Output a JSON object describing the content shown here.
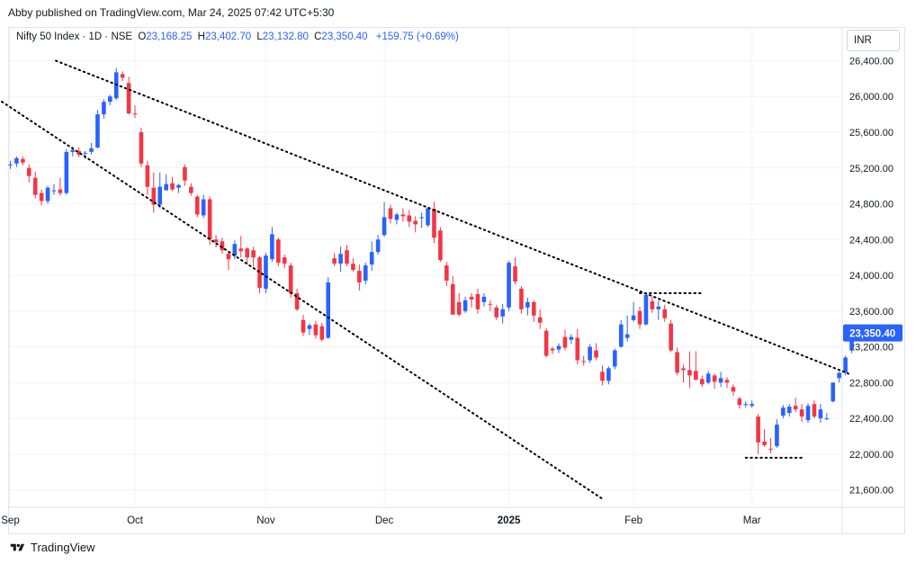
{
  "header": {
    "published_text": "Abby published on TradingView.com, Mar 24, 2025 07:42 UTC+5:30"
  },
  "legend": {
    "symbol": "Nifty 50 Index · 1D · NSE",
    "open_label": "O",
    "open": "23,168.25",
    "high_label": "H",
    "high": "23,402.70",
    "low_label": "L",
    "low": "23,132.80",
    "close_label": "C",
    "close": "23,350.40",
    "change": "+159.75 (+0.69%)"
  },
  "currency": "INR",
  "footer": {
    "brand": "TradingView",
    "logo_icon": "tradingview-logo-icon"
  },
  "colors": {
    "up": "#2962ff",
    "down": "#f23645",
    "last_price_bg": "#2962ff",
    "grid": "#f0f3fa"
  },
  "chart_data": {
    "type": "candlestick",
    "title": "",
    "ylim": [
      21400,
      26600
    ],
    "y_ticks": [
      21600,
      22000,
      22400,
      22800,
      23200,
      23600,
      24000,
      24400,
      24800,
      25200,
      25600,
      26000,
      26400
    ],
    "y_tick_labels": [
      "21,600.00",
      "22,000.00",
      "22,400.00",
      "22,800.00",
      "23,200.00",
      "23,600.00",
      "24,000.00",
      "24,400.00",
      "24,800.00",
      "25,200.00",
      "25,600.00",
      "26,000.00",
      "26,400.00"
    ],
    "x_labels": [
      "Sep",
      "Oct",
      "Nov",
      "Dec",
      "2025",
      "Feb",
      "Mar"
    ],
    "x_label_index": [
      0,
      20,
      41,
      60,
      80,
      100,
      119
    ],
    "last_price_label": "23,350.40",
    "last_price": 23350.4,
    "ohlc": [
      [
        25230,
        25280,
        25190,
        25240
      ],
      [
        25250,
        25330,
        25210,
        25310
      ],
      [
        25300,
        25330,
        25230,
        25260
      ],
      [
        25200,
        25240,
        25040,
        25110
      ],
      [
        25090,
        25160,
        24860,
        24900
      ],
      [
        24920,
        24960,
        24780,
        24830
      ],
      [
        24830,
        25000,
        24800,
        24980
      ],
      [
        24950,
        25020,
        24900,
        24950
      ],
      [
        24960,
        25090,
        24890,
        24920
      ],
      [
        24920,
        25410,
        24900,
        25380
      ],
      [
        25380,
        25440,
        25330,
        25400
      ],
      [
        25390,
        25430,
        25320,
        25350
      ],
      [
        25360,
        25390,
        25300,
        25370
      ],
      [
        25380,
        25480,
        25350,
        25420
      ],
      [
        25430,
        25850,
        25420,
        25800
      ],
      [
        25800,
        25970,
        25750,
        25940
      ],
      [
        25940,
        26020,
        25900,
        26000
      ],
      [
        25980,
        26320,
        25960,
        26270
      ],
      [
        26250,
        26280,
        26170,
        26210
      ],
      [
        26150,
        26220,
        25800,
        25810
      ],
      [
        25810,
        25900,
        25760,
        25800
      ],
      [
        25600,
        25650,
        25210,
        25250
      ],
      [
        25230,
        25280,
        24900,
        24990
      ],
      [
        24980,
        25150,
        24700,
        24790
      ],
      [
        24790,
        25150,
        24750,
        24990
      ],
      [
        24950,
        25130,
        24950,
        25020
      ],
      [
        25030,
        25100,
        24940,
        24960
      ],
      [
        24980,
        25020,
        24920,
        25010
      ],
      [
        25210,
        25240,
        25000,
        25060
      ],
      [
        24990,
        25030,
        24890,
        24920
      ],
      [
        24880,
        24900,
        24650,
        24680
      ],
      [
        24670,
        24900,
        24640,
        24850
      ],
      [
        24850,
        24880,
        24340,
        24400
      ],
      [
        24400,
        24450,
        24310,
        24370
      ],
      [
        24380,
        24420,
        24240,
        24280
      ],
      [
        24240,
        24270,
        24060,
        24180
      ],
      [
        24220,
        24390,
        24180,
        24350
      ],
      [
        24300,
        24440,
        24200,
        24270
      ],
      [
        24300,
        24310,
        24120,
        24200
      ],
      [
        24280,
        24320,
        24100,
        24200
      ],
      [
        24200,
        24220,
        23800,
        23860
      ],
      [
        23850,
        24250,
        23800,
        24220
      ],
      [
        24180,
        24540,
        24150,
        24460
      ],
      [
        24400,
        24420,
        24100,
        24140
      ],
      [
        24200,
        24230,
        24080,
        24130
      ],
      [
        24110,
        24140,
        23750,
        23800
      ],
      [
        23800,
        23850,
        23600,
        23620
      ],
      [
        23500,
        23560,
        23320,
        23360
      ],
      [
        23400,
        23460,
        23330,
        23440
      ],
      [
        23450,
        23490,
        23290,
        23330
      ],
      [
        23430,
        23470,
        23260,
        23280
      ],
      [
        23300,
        23980,
        23290,
        23920
      ],
      [
        24190,
        24250,
        24100,
        24130
      ],
      [
        24130,
        24320,
        24040,
        24240
      ],
      [
        24280,
        24340,
        24100,
        24130
      ],
      [
        24130,
        24190,
        24040,
        24060
      ],
      [
        24050,
        24120,
        23830,
        23920
      ],
      [
        23940,
        24140,
        23900,
        24110
      ],
      [
        24120,
        24380,
        24050,
        24260
      ],
      [
        24260,
        24450,
        24230,
        24400
      ],
      [
        24450,
        24820,
        24430,
        24650
      ],
      [
        24750,
        24790,
        24580,
        24630
      ],
      [
        24620,
        24700,
        24570,
        24680
      ],
      [
        24680,
        24750,
        24600,
        24660
      ],
      [
        24670,
        24730,
        24540,
        24600
      ],
      [
        24610,
        24660,
        24480,
        24570
      ],
      [
        24640,
        24700,
        24530,
        24650
      ],
      [
        24560,
        24760,
        24540,
        24750
      ],
      [
        24740,
        24820,
        24360,
        24420
      ],
      [
        24500,
        24540,
        24150,
        24170
      ],
      [
        24110,
        24150,
        23880,
        23940
      ],
      [
        23900,
        23990,
        23600,
        23560
      ],
      [
        23700,
        23800,
        23540,
        23560
      ],
      [
        23600,
        23760,
        23580,
        23720
      ],
      [
        23760,
        23800,
        23640,
        23730
      ],
      [
        23790,
        23850,
        23570,
        23620
      ],
      [
        23700,
        23800,
        23650,
        23760
      ],
      [
        23680,
        23720,
        23600,
        23670
      ],
      [
        23640,
        23670,
        23500,
        23530
      ],
      [
        23540,
        23680,
        23460,
        23620
      ],
      [
        23640,
        24160,
        23600,
        24140
      ],
      [
        24100,
        24200,
        23900,
        23930
      ],
      [
        23850,
        23880,
        23570,
        23620
      ],
      [
        23640,
        23750,
        23550,
        23700
      ],
      [
        23700,
        23720,
        23480,
        23550
      ],
      [
        23530,
        23620,
        23400,
        23470
      ],
      [
        23380,
        23410,
        23080,
        23100
      ],
      [
        23180,
        23200,
        23120,
        23160
      ],
      [
        23170,
        23240,
        23130,
        23210
      ],
      [
        23310,
        23390,
        23160,
        23190
      ],
      [
        23280,
        23340,
        23230,
        23310
      ],
      [
        23300,
        23400,
        23000,
        23050
      ],
      [
        23040,
        23100,
        22990,
        23030
      ],
      [
        23050,
        23230,
        23020,
        23200
      ],
      [
        23160,
        23240,
        23050,
        23080
      ],
      [
        22920,
        22990,
        22770,
        22820
      ],
      [
        22820,
        22980,
        22780,
        22960
      ],
      [
        22980,
        23180,
        22950,
        23160
      ],
      [
        23200,
        23500,
        23190,
        23450
      ],
      [
        23300,
        23550,
        23260,
        23340
      ],
      [
        23500,
        23700,
        23480,
        23550
      ],
      [
        23600,
        23650,
        23400,
        23450
      ],
      [
        23450,
        23810,
        23440,
        23780
      ],
      [
        23710,
        23760,
        23580,
        23620
      ],
      [
        23620,
        23720,
        23500,
        23650
      ],
      [
        23620,
        23670,
        23480,
        23520
      ],
      [
        23460,
        23500,
        23140,
        23160
      ],
      [
        23140,
        23190,
        22880,
        22910
      ],
      [
        22960,
        23000,
        22800,
        22940
      ],
      [
        22940,
        23150,
        22740,
        22880
      ],
      [
        22930,
        23150,
        22880,
        22830
      ],
      [
        22840,
        22880,
        22750,
        22780
      ],
      [
        22800,
        22930,
        22780,
        22900
      ],
      [
        22880,
        22900,
        22730,
        22810
      ],
      [
        22800,
        22920,
        22750,
        22850
      ],
      [
        22830,
        22860,
        22740,
        22800
      ],
      [
        22750,
        22780,
        22650,
        22700
      ],
      [
        22620,
        22640,
        22510,
        22550
      ],
      [
        22550,
        22590,
        22520,
        22560
      ],
      [
        22540,
        22600,
        22520,
        22560
      ],
      [
        22420,
        22450,
        22000,
        22130
      ],
      [
        22140,
        22280,
        22080,
        22100
      ],
      [
        22060,
        22180,
        22010,
        22050
      ],
      [
        22090,
        22390,
        22070,
        22330
      ],
      [
        22430,
        22550,
        22400,
        22520
      ],
      [
        22460,
        22560,
        22420,
        22530
      ],
      [
        22540,
        22630,
        22470,
        22500
      ],
      [
        22500,
        22560,
        22360,
        22420
      ],
      [
        22380,
        22570,
        22350,
        22540
      ],
      [
        22560,
        22600,
        22400,
        22420
      ],
      [
        22400,
        22560,
        22350,
        22500
      ],
      [
        22390,
        22460,
        22380,
        22400
      ],
      [
        22590,
        22800,
        22580,
        22800
      ],
      [
        22850,
        22920,
        22800,
        22910
      ],
      [
        22910,
        23100,
        22880,
        23080
      ],
      [
        23170,
        23400,
        23130,
        23350
      ]
    ],
    "trendlines": [
      {
        "style": "dotted",
        "from": [
          -11.3,
          26400
        ],
        "to": [
          95,
          21500
        ]
      },
      {
        "style": "dotted",
        "from": [
          7.3,
          26400
        ],
        "to": [
          134.5,
          22900
        ]
      }
    ],
    "levels": [
      {
        "style": "dotted",
        "value": 23800,
        "from_index": 101,
        "to_index": 111
      },
      {
        "style": "dotted",
        "value": 21960,
        "from_index": 118,
        "to_index": 127
      }
    ]
  }
}
